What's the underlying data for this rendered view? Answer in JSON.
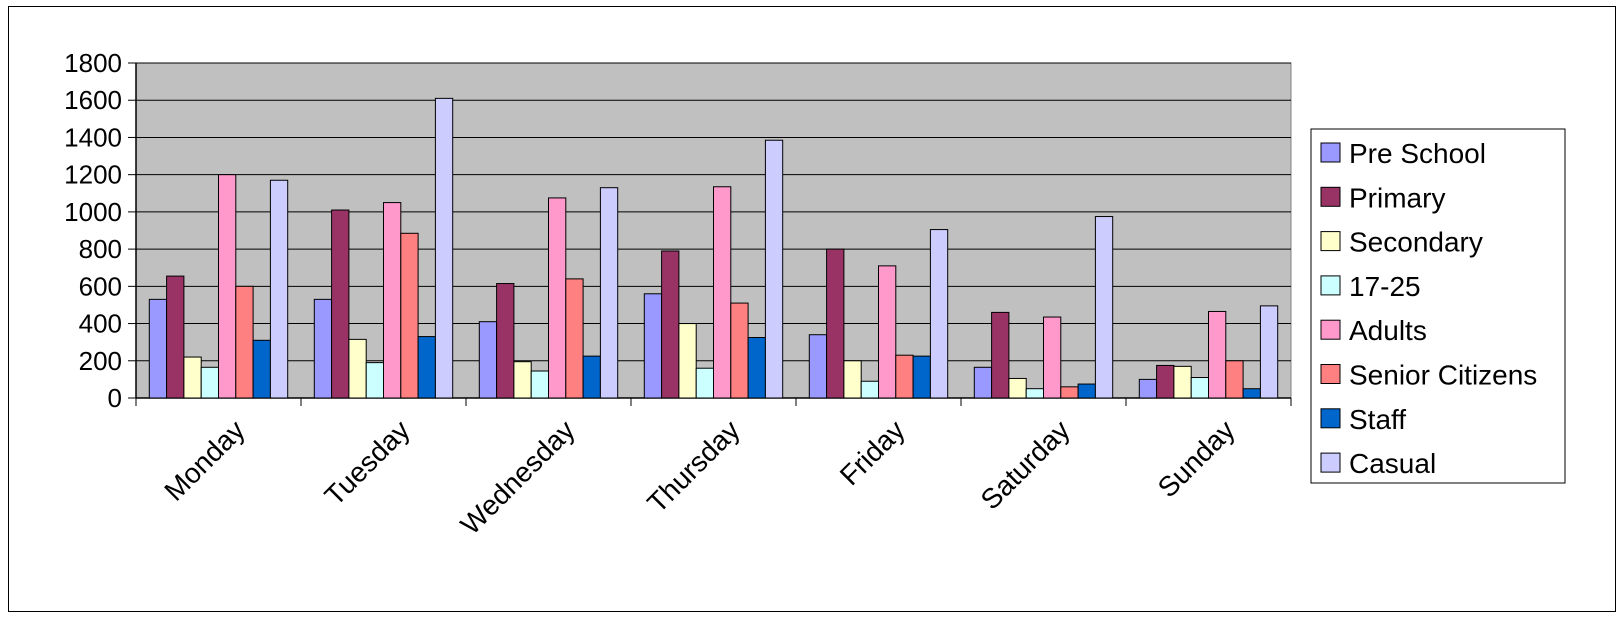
{
  "chart_data": {
    "type": "bar",
    "title": "",
    "xlabel": "",
    "ylabel": "",
    "ylim": [
      0,
      1800
    ],
    "yticks": [
      0,
      200,
      400,
      600,
      800,
      1000,
      1200,
      1400,
      1600,
      1800
    ],
    "grid": true,
    "legend": "right",
    "plot_background": "#c0c0c0",
    "categories": [
      "Monday",
      "Tuesday",
      "Wednesday",
      "Thursday",
      "Friday",
      "Saturday",
      "Sunday"
    ],
    "series": [
      {
        "name": "Pre School",
        "color": "#9999ff",
        "values": [
          530,
          530,
          410,
          560,
          340,
          165,
          100
        ]
      },
      {
        "name": "Primary",
        "color": "#993366",
        "values": [
          655,
          1010,
          615,
          790,
          800,
          460,
          175
        ]
      },
      {
        "name": "Secondary",
        "color": "#ffffcc",
        "values": [
          220,
          315,
          195,
          400,
          200,
          105,
          170
        ]
      },
      {
        "name": "17-25",
        "color": "#ccffff",
        "values": [
          165,
          190,
          145,
          160,
          90,
          50,
          110
        ]
      },
      {
        "name": "Adults",
        "color": "#ff99cc",
        "values": [
          1200,
          1050,
          1075,
          1135,
          710,
          435,
          465
        ]
      },
      {
        "name": "Senior Citizens",
        "color": "#ff8080",
        "values": [
          600,
          885,
          640,
          510,
          230,
          60,
          200
        ]
      },
      {
        "name": "Staff",
        "color": "#0066cc",
        "values": [
          310,
          330,
          225,
          325,
          225,
          75,
          50
        ]
      },
      {
        "name": "Casual",
        "color": "#ccccff",
        "values": [
          1170,
          1610,
          1130,
          1385,
          905,
          975,
          495
        ]
      }
    ]
  }
}
